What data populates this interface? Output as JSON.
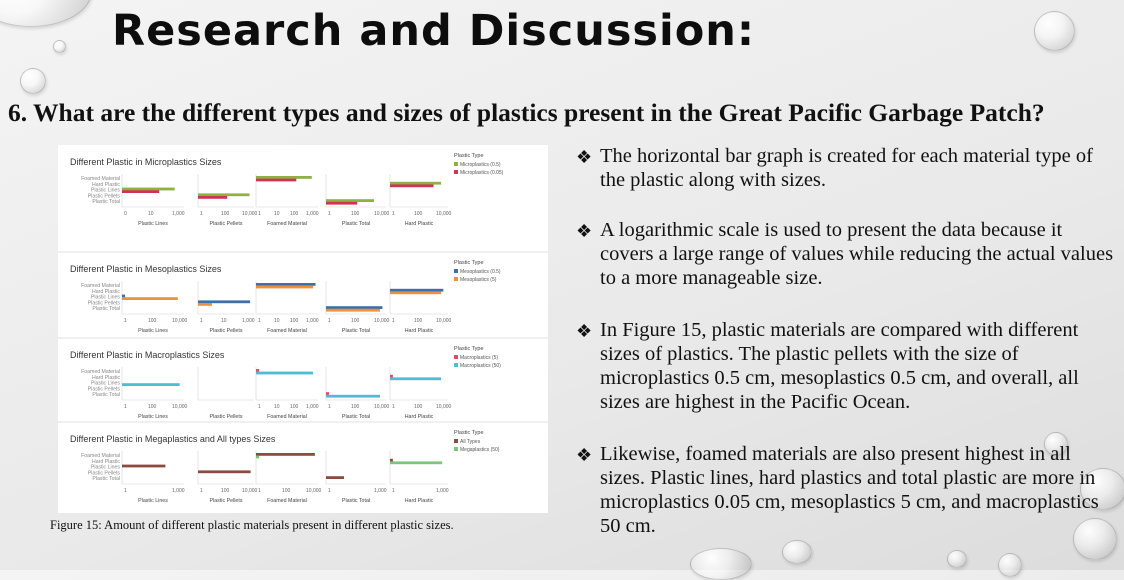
{
  "slide": {
    "title": "Research and Discussion:",
    "question": "6. What are the different types and sizes of plastics present in the Great Pacific Garbage Patch?",
    "caption": "Figure 15: Amount of different plastic materials present in different plastic sizes.",
    "bullet_glyph": "❖",
    "bullets": [
      "The horizontal bar graph is created for each material type of the plastic along with sizes.",
      "A logarithmic scale is used to present the data because it covers a large range of values while reducing the actual values to a more manageable size.",
      " In Figure 15, plastic materials are compared with different sizes of plastics. The plastic pellets with the size of microplastics 0.5 cm, mesoplastics 0.5 cm, and overall, all sizes are highest in the Pacific Ocean.",
      "Likewise, foamed materials are also present highest in all sizes. Plastic lines, hard plastics and total plastic are more in microplastics 0.05 cm, mesoplastics 5 cm, and macroplastics 50 cm."
    ]
  },
  "chart_data": [
    {
      "type": "bar",
      "title": "Different Plastic in Microplastics Sizes",
      "legend_title": "Plastic Type",
      "legend_position": "top-right",
      "rows": [
        "Foamed Material",
        "Hard Plastic",
        "Plastic Lines",
        "Plastic Pellets",
        "Plastic Total"
      ],
      "panels": [
        {
          "name": "Plastic Lines",
          "ticks": [
            "0",
            "10",
            "1,000"
          ]
        },
        {
          "name": "Plastic Pellets",
          "ticks": [
            "1",
            "100",
            "10,000"
          ]
        },
        {
          "name": "Foamed Material",
          "ticks": [
            "1",
            "10",
            "100",
            "1,000"
          ]
        },
        {
          "name": "Plastic Total",
          "ticks": [
            "1",
            "100",
            "10,000"
          ]
        },
        {
          "name": "Hard Plastic",
          "ticks": [
            "1",
            "100",
            "10,000"
          ]
        }
      ],
      "series": [
        {
          "name": "Microplastics (0.5)",
          "color": "#8db23f",
          "bars": [
            {
              "panel": 0,
              "row": 2,
              "v": 0.85
            },
            {
              "panel": 1,
              "row": 3,
              "v": 0.92
            },
            {
              "panel": 2,
              "row": 0,
              "v": 0.9
            },
            {
              "panel": 3,
              "row": 4,
              "v": 0.8
            },
            {
              "panel": 4,
              "row": 1,
              "v": 0.88
            }
          ]
        },
        {
          "name": "Microplastics (0.05)",
          "color": "#cf3553",
          "bars": [
            {
              "panel": 0,
              "row": 2,
              "v": 0.6
            },
            {
              "panel": 1,
              "row": 3,
              "v": 0.52
            },
            {
              "panel": 2,
              "row": 0,
              "v": 0.65
            },
            {
              "panel": 3,
              "row": 4,
              "v": 0.52
            },
            {
              "panel": 4,
              "row": 1,
              "v": 0.75
            }
          ]
        }
      ]
    },
    {
      "type": "bar",
      "title": "Different Plastic in Mesoplastics Sizes",
      "legend_title": "Plastic Type",
      "legend_position": "top-right",
      "rows": [
        "Foamed Material",
        "Hard Plastic",
        "Plastic Lines",
        "Plastic Pellets",
        "Plastic Total"
      ],
      "panels": [
        {
          "name": "Plastic Lines",
          "ticks": [
            "1",
            "100",
            "10,000"
          ]
        },
        {
          "name": "Plastic Pellets",
          "ticks": [
            "1",
            "10",
            "1,000"
          ]
        },
        {
          "name": "Foamed Material",
          "ticks": [
            "1",
            "10",
            "100",
            "1,000"
          ]
        },
        {
          "name": "Plastic Total",
          "ticks": [
            "1",
            "100",
            "10,000"
          ]
        },
        {
          "name": "Hard Plastic",
          "ticks": [
            "1",
            "100",
            "10,000"
          ]
        }
      ],
      "series": [
        {
          "name": "Mesoplastics (0.5)",
          "color": "#3e6fa8",
          "bars": [
            {
              "panel": 0,
              "row": 2,
              "v": 0.05
            },
            {
              "panel": 1,
              "row": 3,
              "v": 0.93
            },
            {
              "panel": 2,
              "row": 0,
              "v": 0.96
            },
            {
              "panel": 3,
              "row": 4,
              "v": 0.94
            },
            {
              "panel": 4,
              "row": 1,
              "v": 0.92
            }
          ]
        },
        {
          "name": "Mesoplastics (5)",
          "color": "#f0913a",
          "bars": [
            {
              "panel": 0,
              "row": 2,
              "v": 0.9
            },
            {
              "panel": 1,
              "row": 3,
              "v": 0.25
            },
            {
              "panel": 2,
              "row": 0,
              "v": 0.92
            },
            {
              "panel": 3,
              "row": 4,
              "v": 0.9
            },
            {
              "panel": 4,
              "row": 1,
              "v": 0.88
            }
          ]
        }
      ]
    },
    {
      "type": "bar",
      "title": "Different Plastic in Macroplastics Sizes",
      "legend_title": "Plastic Type",
      "legend_position": "top-right",
      "rows": [
        "Foamed Material",
        "Hard Plastic",
        "Plastic Lines",
        "Plastic Pellets",
        "Plastic Total"
      ],
      "panels": [
        {
          "name": "Plastic Lines",
          "ticks": [
            "1",
            "100",
            "10,000"
          ]
        },
        {
          "name": "Plastic Pellets",
          "ticks": []
        },
        {
          "name": "Foamed Material",
          "ticks": [
            "1",
            "10",
            "100",
            "1,000"
          ]
        },
        {
          "name": "Plastic Total",
          "ticks": [
            "1",
            "100",
            "10,000"
          ]
        },
        {
          "name": "Hard Plastic",
          "ticks": [
            "1",
            "100",
            "10,000"
          ]
        }
      ],
      "series": [
        {
          "name": "Macroplastics (5)",
          "color": "#dc4d61",
          "bars": [
            {
              "panel": 2,
              "row": 0,
              "v": 0.05
            },
            {
              "panel": 3,
              "row": 4,
              "v": 0.05
            },
            {
              "panel": 4,
              "row": 1,
              "v": 0.05
            }
          ]
        },
        {
          "name": "Macroplastics (50)",
          "color": "#4fbcd3",
          "bars": [
            {
              "panel": 0,
              "row": 2,
              "v": 0.93
            },
            {
              "panel": 2,
              "row": 0,
              "v": 0.92
            },
            {
              "panel": 3,
              "row": 4,
              "v": 0.9
            },
            {
              "panel": 4,
              "row": 1,
              "v": 0.88
            }
          ]
        }
      ]
    },
    {
      "type": "bar",
      "title": "Different Plastic in Megaplastics and All types Sizes",
      "legend_title": "Plastic Type",
      "legend_position": "top-right",
      "rows": [
        "Foamed Material",
        "Hard Plastic",
        "Plastic Lines",
        "Plastic Pellets",
        "Plastic Total"
      ],
      "panels": [
        {
          "name": "Plastic Lines",
          "ticks": [
            "1",
            "1,000"
          ]
        },
        {
          "name": "Plastic Pellets",
          "ticks": [
            "1",
            "100",
            "10,000"
          ]
        },
        {
          "name": "Foamed Material",
          "ticks": [
            "1",
            "100",
            "10,000"
          ]
        },
        {
          "name": "Plastic Total",
          "ticks": [
            "1",
            "1,000"
          ]
        },
        {
          "name": "Hard Plastic",
          "ticks": [
            "1",
            "1,000"
          ]
        }
      ],
      "series": [
        {
          "name": "All Types",
          "color": "#8a4c42",
          "bars": [
            {
              "panel": 0,
              "row": 2,
              "v": 0.7
            },
            {
              "panel": 1,
              "row": 3,
              "v": 0.94
            },
            {
              "panel": 2,
              "row": 0,
              "v": 0.95
            },
            {
              "panel": 3,
              "row": 4,
              "v": 0.3
            },
            {
              "panel": 4,
              "row": 1,
              "v": 0.05
            }
          ]
        },
        {
          "name": "Megaplastics (50)",
          "color": "#7ac77c",
          "bars": [
            {
              "panel": 2,
              "row": 0,
              "v": 0.05
            },
            {
              "panel": 4,
              "row": 1,
              "v": 0.9
            }
          ]
        }
      ]
    }
  ]
}
